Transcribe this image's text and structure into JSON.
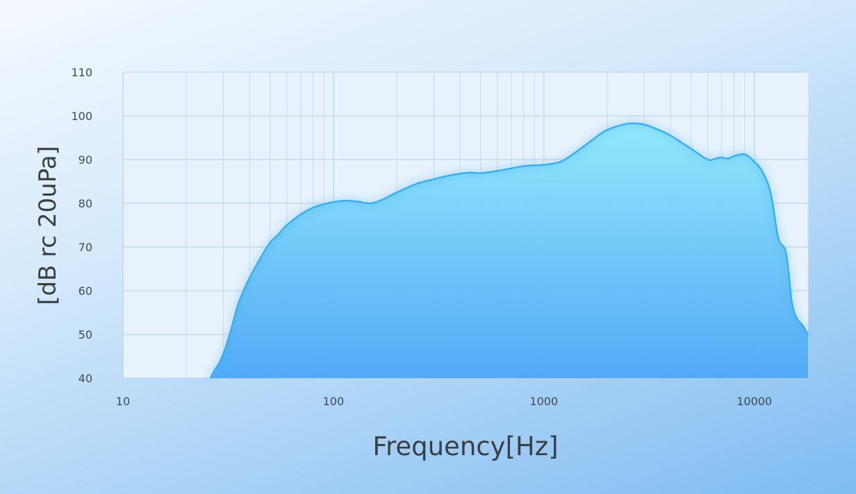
{
  "chart_data": {
    "type": "area",
    "title": "",
    "xlabel": "Frequency[Hz]",
    "ylabel": "[dB rc 20uPa]",
    "xscale": "log",
    "xlim": [
      10,
      18000
    ],
    "ylim": [
      40,
      110
    ],
    "grid": true,
    "xticks": [
      "10",
      "100",
      "1000",
      "10000"
    ],
    "yticks": [
      "40",
      "50",
      "60",
      "70",
      "80",
      "90",
      "100",
      "110"
    ],
    "x": [
      26,
      27,
      29,
      31,
      33,
      35,
      37,
      40,
      45,
      50,
      55,
      60,
      70,
      80,
      90,
      100,
      115,
      130,
      150,
      170,
      200,
      250,
      300,
      350,
      400,
      450,
      500,
      600,
      700,
      800,
      900,
      1000,
      1200,
      1400,
      1700,
      2000,
      2500,
      3000,
      3500,
      4000,
      5000,
      6000,
      6500,
      7000,
      7500,
      8000,
      9000,
      10000,
      11000,
      12000,
      13000,
      14000,
      14500,
      15000,
      15500,
      16000,
      17000,
      18000
    ],
    "values": [
      40,
      41.5,
      44,
      47.5,
      52,
      56.5,
      59.5,
      63,
      67.5,
      71,
      73,
      75,
      77.5,
      79,
      79.8,
      80.3,
      80.6,
      80.4,
      80,
      80.8,
      82.5,
      84.5,
      85.5,
      86.3,
      86.8,
      87,
      86.9,
      87.4,
      88,
      88.5,
      88.7,
      88.8,
      89.5,
      91.5,
      94.5,
      96.8,
      98.2,
      98,
      96.8,
      95.5,
      92.5,
      90,
      90.2,
      90.5,
      90.2,
      90.8,
      91.2,
      89.5,
      87,
      82,
      72,
      69.5,
      65,
      58,
      55,
      53.5,
      52,
      50
    ],
    "colors": {
      "line": "#3aaef0",
      "fill_top": "#8fe8fb",
      "fill_bottom": "#4aa6f6",
      "grid": "#b9cde3",
      "plot_bg": "#e8f2fc"
    }
  }
}
